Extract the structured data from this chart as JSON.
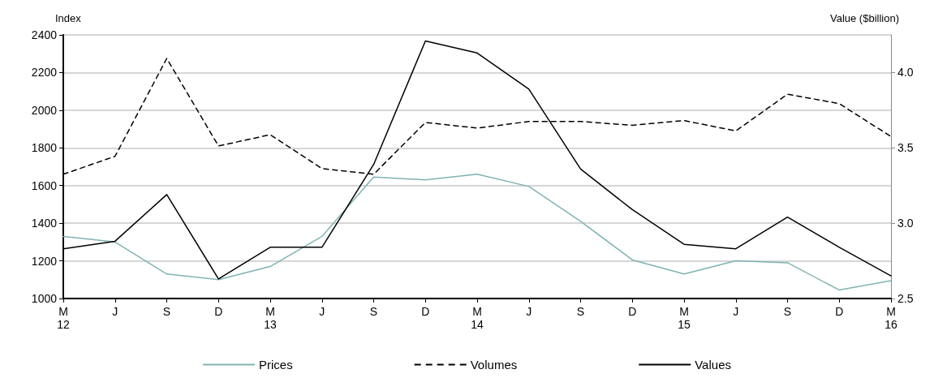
{
  "chart_data": {
    "type": "line",
    "categories": [
      "M\n12",
      "J",
      "S",
      "D",
      "M\n13",
      "J",
      "S",
      "D",
      "M\n14",
      "J",
      "S",
      "D",
      "M\n15",
      "J",
      "S",
      "D",
      "M\n16"
    ],
    "ylabel": "Index",
    "y2label": "Value ($billion)",
    "ylim": [
      1000,
      2400
    ],
    "yticks": [
      1000,
      1200,
      1400,
      1600,
      1800,
      2000,
      2200,
      2400
    ],
    "y2lim": [
      2.5,
      4.25
    ],
    "y2ticks": [
      {
        "value": 2.5,
        "label": "2.5"
      },
      {
        "value": 3,
        "label": "3.0"
      },
      {
        "value": 3.5,
        "label": "3.5"
      },
      {
        "value": 4,
        "label": "4.0"
      }
    ],
    "grid": "y",
    "legend": "bottom",
    "marker": "none",
    "series": [
      {
        "name": "Prices",
        "color": "#7fb3b3",
        "line_style": "solid",
        "values": [
          1330,
          1300,
          1130,
          1100,
          1170,
          1330,
          1645,
          1630,
          1660,
          1595,
          1410,
          1205,
          1130,
          1200,
          1190,
          1045,
          1095
        ]
      },
      {
        "name": "Volumes",
        "color": "#000000",
        "line_style": "dashed",
        "values": [
          1660,
          1755,
          2275,
          1810,
          1870,
          1690,
          1660,
          1935,
          1905,
          1940,
          1940,
          1920,
          1945,
          1890,
          2085,
          2035,
          1860
        ]
      },
      {
        "name": "Values",
        "color": "#000000",
        "line_style": "solid",
        "axis": "y2",
        "values": [
          2.83,
          2.88,
          3.19,
          2.63,
          2.84,
          2.84,
          3.39,
          4.21,
          4.13,
          3.89,
          3.36,
          3.09,
          2.86,
          2.83,
          3.04,
          2.84,
          2.65
        ]
      }
    ]
  }
}
